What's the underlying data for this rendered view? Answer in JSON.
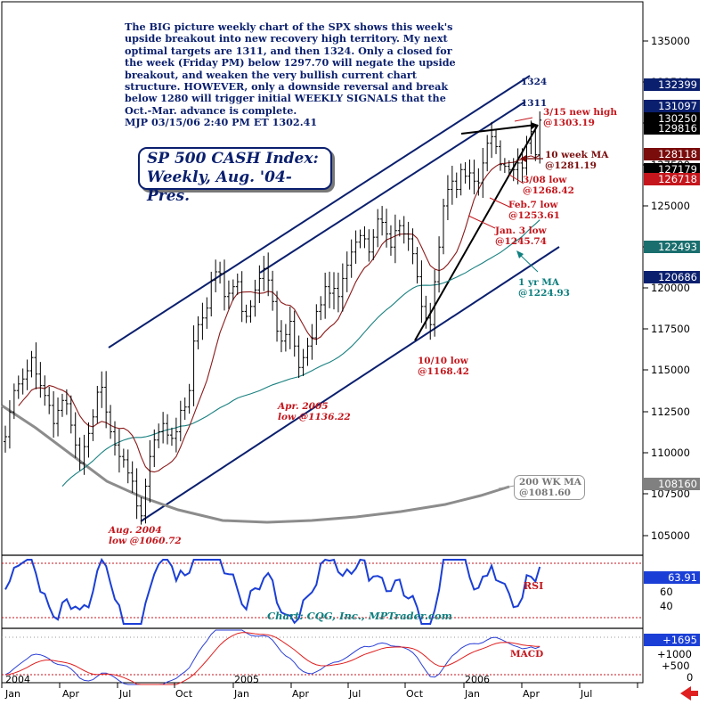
{
  "colors": {
    "price_bars": "#000000",
    "channel": "#0a1f6e",
    "ma10": "#8b1a1a",
    "ma52": "#1a8080",
    "ma200": "#8c8c8c",
    "rsi": "#1b3fd6",
    "macd": "#2b3fd6",
    "macd_signal": "#e02020",
    "annotation_red": "#c4161c",
    "annotation_navy": "#0a1f6e",
    "annotation_teal": "#0f7f7f",
    "price_box_navy": "#0a1f6e",
    "price_box_teal": "#1a6e6e",
    "price_box_red": "#c4161c",
    "price_box_dred": "#7a0c0c",
    "price_box_gray": "#808080",
    "price_box_black": "#000000"
  },
  "commentary": {
    "lines": [
      "The BIG picture weekly chart of the SPX shows this week's",
      "upside breakout into new recovery high territory. My next",
      "optimal targets are 1311, and then 1324. Only a closed for",
      "the week (Friday PM) below 1297.70 will negate the upside",
      "breakout, and weaken the very bullish current chart",
      "structure. HOWEVER, only a downside reversal and break",
      "below 1280 will trigger initial WEEKLY SIGNALS that the",
      "Oct.-Mar. advance is complete.",
      "MJP  03/15/06  2:40 PM ET  1302.41"
    ]
  },
  "title_box": {
    "line1": "SP 500 CASH Index:",
    "line2": "Weekly, Aug. '04-Pres."
  },
  "annotations": {
    "target_1324": "1324",
    "target_1311": "1311",
    "new_high_l1": "3/15 new high",
    "new_high_l2": "@1303.19",
    "ma10_l1": "10 week MA",
    "ma10_l2": "@1281.19",
    "low_0308_l1": "3/08 low",
    "low_0308_l2": "@1268.42",
    "low_feb7_l1": "Feb.7 low",
    "low_feb7_l2": "@1253.61",
    "low_jan3_l1": "Jan. 3 low",
    "low_jan3_l2": "@1245.74",
    "ma1yr_l1": "1 yr MA",
    "ma1yr_l2": "@1224.93",
    "low_1010_l1": "10/10 low",
    "low_1010_l2": "@1168.42",
    "low_apr05_l1": "Apr. 2005",
    "low_apr05_l2": "low @1136.22",
    "low_aug04_l1": "Aug. 2004",
    "low_aug04_l2": "low @1060.72",
    "ma200_l1": "200 WK MA",
    "ma200_l2": "@1081.60",
    "rsi_label": "RSI",
    "macd_label": "MACD",
    "credit": "Chart: CQG, Inc., MPTrader.com"
  },
  "y_axis_labels": [
    "135000",
    "132500",
    "130000",
    "127500",
    "125000",
    "122500",
    "120000",
    "117500",
    "115000",
    "112500",
    "110000",
    "107500",
    "105000"
  ],
  "price_boxes": [
    {
      "text": "132399",
      "color": "navy"
    },
    {
      "text": "131097",
      "color": "navy"
    },
    {
      "text": "130250",
      "color": "black"
    },
    {
      "text": "129816",
      "color": "black"
    },
    {
      "text": "128118",
      "color": "dred"
    },
    {
      "text": "127179",
      "color": "black"
    },
    {
      "text": "126718",
      "color": "red"
    },
    {
      "text": "122493",
      "color": "teal"
    },
    {
      "text": "120686",
      "color": "navy"
    },
    {
      "text": "108160",
      "color": "gray"
    }
  ],
  "rsi_panel": {
    "value_box": "63.91",
    "axis_labels": [
      "60",
      "40"
    ]
  },
  "macd_panel": {
    "value_box": "+1695",
    "axis_labels": [
      "+1000",
      "+500",
      "0"
    ]
  },
  "x_axis": {
    "months": [
      "Jan",
      "Apr",
      "Jul",
      "Oct",
      "Jan",
      "Apr",
      "Jul",
      "Oct",
      "Jan",
      "Apr",
      "Jul"
    ],
    "years": [
      "2004",
      "2005",
      "2006"
    ]
  },
  "chart_data": {
    "type": "ohlc",
    "instrument": "SP 500 CASH Index",
    "frequency": "weekly",
    "y_scale": "price x 100",
    "ylim": [
      103500,
      137000
    ],
    "series": [
      {
        "name": "SPX weekly closes",
        "values": [
          111000,
          112500,
          113800,
          114200,
          114500,
          115000,
          115800,
          114800,
          114100,
          113500,
          112900,
          111800,
          112600,
          113200,
          113000,
          111700,
          110500,
          109400,
          110400,
          111200,
          112200,
          113700,
          114000,
          112500,
          111300,
          110500,
          109800,
          109600,
          108800,
          108300,
          106800,
          106200,
          108000,
          109800,
          110800,
          111300,
          111800,
          111100,
          110900,
          111300,
          112600,
          112800,
          113800,
          116800,
          117800,
          118200,
          118800,
          120500,
          121000,
          120900,
          119500,
          119700,
          120100,
          120400,
          118600,
          118300,
          118900,
          119900,
          120600,
          121200,
          120500,
          119200,
          117400,
          116800,
          117200,
          118000,
          116500,
          115200,
          115800,
          116500,
          117000,
          118600,
          119000,
          120100,
          119700,
          120000,
          119500,
          120600,
          121400,
          122200,
          122800,
          123200,
          123000,
          122200,
          123100,
          124200,
          124000,
          123300,
          122500,
          123500,
          123800,
          123300,
          123000,
          122100,
          120700,
          118900,
          118200,
          117800,
          120400,
          122500,
          125000,
          126000,
          126500,
          126000,
          127200,
          126800,
          127000,
          126500,
          126400,
          127600,
          128800,
          129200,
          128600,
          127500,
          127400,
          127200,
          127200,
          127600,
          127300,
          128800,
          129500,
          128100,
          130200
        ]
      },
      {
        "name": "10 week MA",
        "values": []
      },
      {
        "name": "1 yr MA",
        "values": []
      },
      {
        "name": "200 WK MA",
        "values": []
      }
    ],
    "key_levels": [
      {
        "label": "3/15 new high",
        "value": 1303.19
      },
      {
        "label": "10 week MA",
        "value": 1281.19
      },
      {
        "label": "3/08 low",
        "value": 1268.42
      },
      {
        "label": "Feb.7 low",
        "value": 1253.61
      },
      {
        "label": "Jan. 3 low",
        "value": 1245.74
      },
      {
        "label": "1 yr MA",
        "value": 1224.93
      },
      {
        "label": "10/10 low",
        "value": 1168.42
      },
      {
        "label": "Apr. 2005 low",
        "value": 1136.22
      },
      {
        "label": "Aug. 2004 low",
        "value": 1060.72
      },
      {
        "label": "200 WK MA",
        "value": 1081.6
      }
    ],
    "targets": [
      1311,
      1324
    ],
    "rsi_last": 63.91,
    "macd_last": 1695
  }
}
